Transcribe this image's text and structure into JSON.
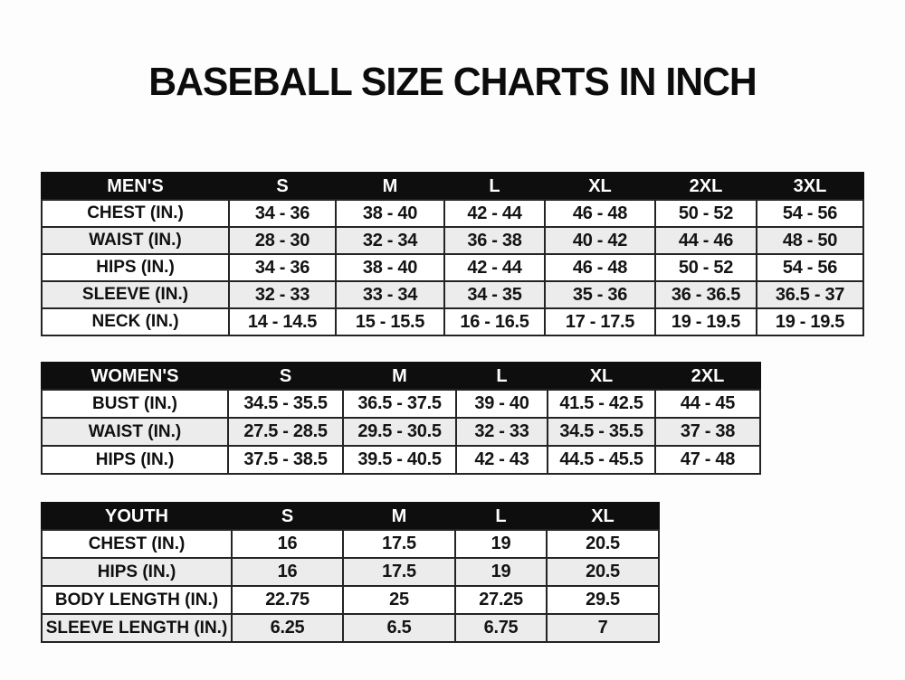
{
  "title": "BASEBALL SIZE CHARTS IN INCH",
  "colors": {
    "page_bg": "#fdfdfd",
    "title_color": "#0c0c0c",
    "header_bg": "#0e0e0e",
    "header_text": "#ffffff",
    "stripe_color": "#ececec",
    "border_color": "#242424"
  },
  "chart_data": [
    {
      "type": "table",
      "id": "mens",
      "group_label": "MEN'S",
      "columns": [
        "S",
        "M",
        "L",
        "XL",
        "2XL",
        "3XL"
      ],
      "rows": [
        {
          "label": "CHEST (IN.)",
          "values": [
            "34 - 36",
            "38 - 40",
            "42 - 44",
            "46 - 48",
            "50 - 52",
            "54 - 56"
          ]
        },
        {
          "label": "WAIST (IN.)",
          "values": [
            "28 - 30",
            "32 - 34",
            "36 - 38",
            "40 - 42",
            "44 - 46",
            "48 - 50"
          ]
        },
        {
          "label": "HIPS (IN.)",
          "values": [
            "34 - 36",
            "38 - 40",
            "42 - 44",
            "46 - 48",
            "50 - 52",
            "54 - 56"
          ]
        },
        {
          "label": "SLEEVE (IN.)",
          "values": [
            "32 - 33",
            "33 - 34",
            "34 - 35",
            "35 - 36",
            "36 - 36.5",
            "36.5 - 37"
          ]
        },
        {
          "label": "NECK (IN.)",
          "values": [
            "14 - 14.5",
            "15 - 15.5",
            "16 - 16.5",
            "17 - 17.5",
            "19 - 19.5",
            "19 - 19.5"
          ]
        }
      ]
    },
    {
      "type": "table",
      "id": "womens",
      "group_label": "WOMEN'S",
      "columns": [
        "S",
        "M",
        "L",
        "XL",
        "2XL"
      ],
      "rows": [
        {
          "label": "BUST (IN.)",
          "values": [
            "34.5 - 35.5",
            "36.5 - 37.5",
            "39 - 40",
            "41.5 - 42.5",
            "44 - 45"
          ]
        },
        {
          "label": "WAIST (IN.)",
          "values": [
            "27.5 - 28.5",
            "29.5 - 30.5",
            "32 - 33",
            "34.5 - 35.5",
            "37 - 38"
          ]
        },
        {
          "label": "HIPS (IN.)",
          "values": [
            "37.5 - 38.5",
            "39.5 - 40.5",
            "42 - 43",
            "44.5 - 45.5",
            "47 - 48"
          ]
        }
      ]
    },
    {
      "type": "table",
      "id": "youth",
      "group_label": "YOUTH",
      "columns": [
        "S",
        "M",
        "L",
        "XL"
      ],
      "rows": [
        {
          "label": "CHEST (IN.)",
          "values": [
            "16",
            "17.5",
            "19",
            "20.5"
          ]
        },
        {
          "label": "HIPS (IN.)",
          "values": [
            "16",
            "17.5",
            "19",
            "20.5"
          ]
        },
        {
          "label": "BODY LENGTH (IN.)",
          "values": [
            "22.75",
            "25",
            "27.25",
            "29.5"
          ]
        },
        {
          "label": "SLEEVE LENGTH (IN.)",
          "values": [
            "6.25",
            "6.5",
            "6.75",
            "7"
          ]
        }
      ]
    }
  ]
}
